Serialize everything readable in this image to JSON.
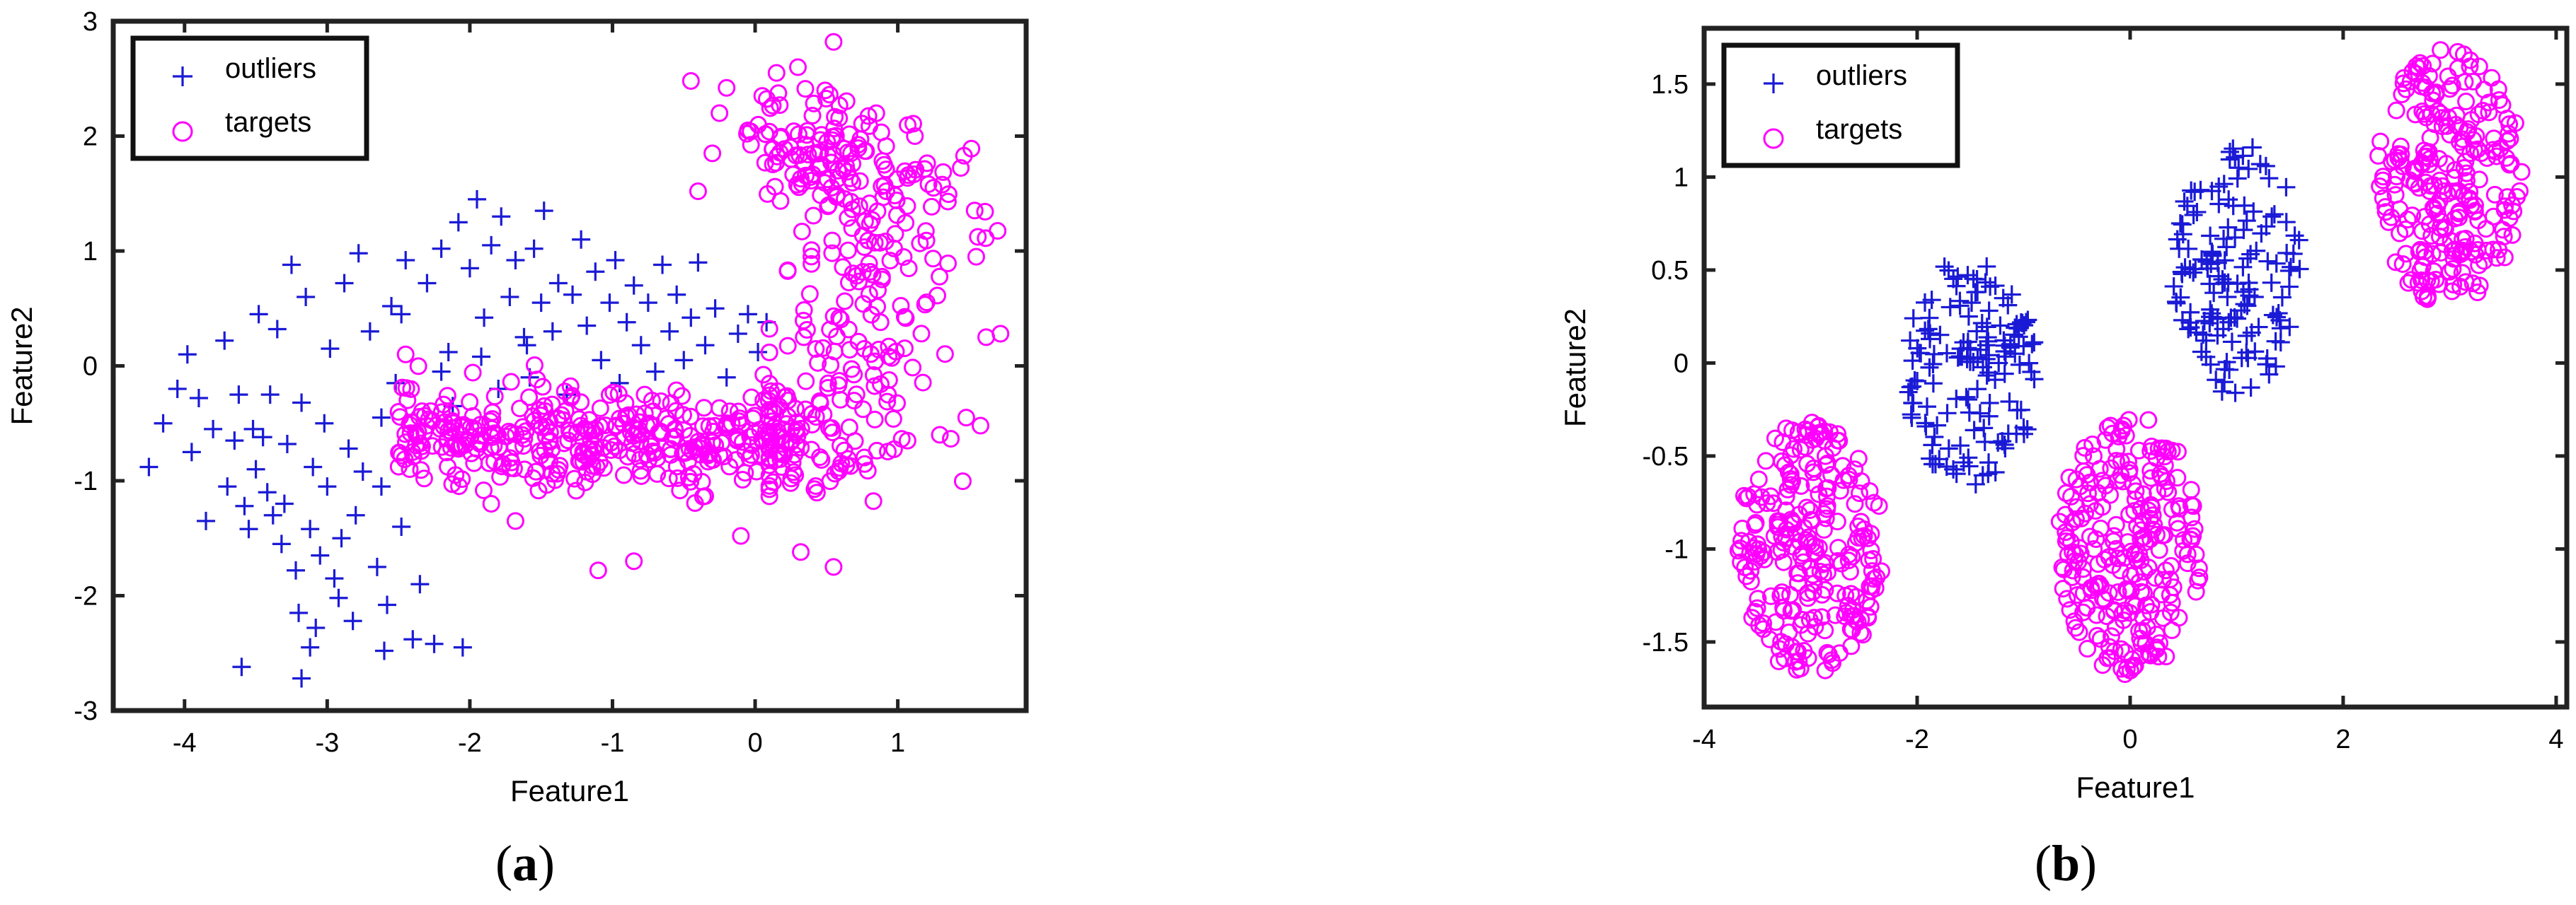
{
  "figure": {
    "panels": [
      {
        "label_open": "(",
        "label_letter": "a",
        "label_close": ")"
      },
      {
        "label_open": "(",
        "label_letter": "b",
        "label_close": ")"
      }
    ]
  },
  "chart_data": [
    {
      "type": "scatter",
      "xlabel": "Feature1",
      "ylabel": "Feature2",
      "xlim": [
        -4.5,
        1.9
      ],
      "ylim": [
        -3.0,
        3.0
      ],
      "xticks": [
        -4,
        -3,
        -2,
        -1,
        0,
        1
      ],
      "yticks": [
        -3,
        -2,
        -1,
        0,
        1,
        2,
        3
      ],
      "legend": {
        "placement": "top-left",
        "entries": [
          "outliers",
          "targets"
        ]
      },
      "grid": false,
      "series": [
        {
          "name": "outliers",
          "marker": "plus",
          "color": "#1a1ad6",
          "points": [
            [
              -4.25,
              -0.88
            ],
            [
              -4.15,
              -0.5
            ],
            [
              -4.05,
              -0.2
            ],
            [
              -3.98,
              0.1
            ],
            [
              -3.95,
              -0.75
            ],
            [
              -3.9,
              -0.28
            ],
            [
              -3.85,
              -1.35
            ],
            [
              -3.8,
              -0.55
            ],
            [
              -3.72,
              0.22
            ],
            [
              -3.7,
              -1.05
            ],
            [
              -3.65,
              -0.65
            ],
            [
              -3.62,
              -0.25
            ],
            [
              -3.6,
              -2.62
            ],
            [
              -3.58,
              -1.22
            ],
            [
              -3.55,
              -1.42
            ],
            [
              -3.52,
              -0.55
            ],
            [
              -3.5,
              -0.9
            ],
            [
              -3.48,
              0.45
            ],
            [
              -3.45,
              -0.62
            ],
            [
              -3.42,
              -1.1
            ],
            [
              -3.4,
              -0.25
            ],
            [
              -3.38,
              -1.3
            ],
            [
              -3.35,
              0.32
            ],
            [
              -3.32,
              -1.55
            ],
            [
              -3.3,
              -1.2
            ],
            [
              -3.28,
              -0.68
            ],
            [
              -3.25,
              0.88
            ],
            [
              -3.22,
              -1.78
            ],
            [
              -3.2,
              -2.15
            ],
            [
              -3.18,
              -0.32
            ],
            [
              -3.15,
              0.6
            ],
            [
              -3.12,
              -1.42
            ],
            [
              -3.1,
              -0.88
            ],
            [
              -3.08,
              -2.28
            ],
            [
              -3.05,
              -1.65
            ],
            [
              -3.02,
              -0.5
            ],
            [
              -3.0,
              -1.05
            ],
            [
              -2.98,
              0.15
            ],
            [
              -2.95,
              -1.85
            ],
            [
              -2.92,
              -2.02
            ],
            [
              -2.9,
              -1.5
            ],
            [
              -2.88,
              0.72
            ],
            [
              -2.85,
              -0.72
            ],
            [
              -2.82,
              -2.22
            ],
            [
              -2.8,
              -1.3
            ],
            [
              -2.78,
              0.98
            ],
            [
              -2.75,
              -0.92
            ],
            [
              -3.18,
              -2.72
            ],
            [
              -3.12,
              -2.45
            ],
            [
              -2.7,
              0.3
            ],
            [
              -2.65,
              -1.75
            ],
            [
              -2.62,
              -0.45
            ],
            [
              -2.6,
              -2.48
            ],
            [
              -2.58,
              -2.08
            ],
            [
              -2.55,
              0.52
            ],
            [
              -2.52,
              -0.15
            ],
            [
              -2.48,
              -1.4
            ],
            [
              -2.45,
              0.92
            ],
            [
              -2.4,
              -2.38
            ],
            [
              -2.35,
              -1.9
            ],
            [
              -2.62,
              -1.05
            ],
            [
              -2.3,
              0.72
            ],
            [
              -2.25,
              -2.42
            ],
            [
              -2.2,
              1.02
            ],
            [
              -2.15,
              0.12
            ],
            [
              -2.12,
              -0.35
            ],
            [
              -2.08,
              1.25
            ],
            [
              -2.05,
              -2.45
            ],
            [
              -2.0,
              0.85
            ],
            [
              -1.95,
              1.45
            ],
            [
              -1.9,
              0.42
            ],
            [
              -1.85,
              1.05
            ],
            [
              -1.8,
              -0.2
            ],
            [
              -1.78,
              1.3
            ],
            [
              -1.72,
              0.6
            ],
            [
              -1.68,
              0.92
            ],
            [
              -1.62,
              0.25
            ],
            [
              -1.58,
              -0.1
            ],
            [
              -1.55,
              1.02
            ],
            [
              -1.5,
              0.55
            ],
            [
              -1.48,
              1.35
            ],
            [
              -1.42,
              0.3
            ],
            [
              -1.38,
              0.72
            ],
            [
              -1.32,
              -0.25
            ],
            [
              -1.28,
              0.62
            ],
            [
              -1.22,
              1.1
            ],
            [
              -1.18,
              0.35
            ],
            [
              -1.12,
              0.82
            ],
            [
              -1.08,
              0.05
            ],
            [
              -1.02,
              0.55
            ],
            [
              -0.98,
              0.92
            ],
            [
              -0.95,
              -0.15
            ],
            [
              -0.9,
              0.38
            ],
            [
              -0.85,
              0.7
            ],
            [
              -0.8,
              0.18
            ],
            [
              -0.75,
              0.55
            ],
            [
              -0.7,
              -0.05
            ],
            [
              -0.65,
              0.88
            ],
            [
              -0.6,
              0.3
            ],
            [
              -0.55,
              0.62
            ],
            [
              -0.5,
              0.05
            ],
            [
              -0.45,
              0.42
            ],
            [
              -0.4,
              0.9
            ],
            [
              -0.35,
              0.18
            ],
            [
              -0.28,
              0.5
            ],
            [
              -0.2,
              -0.1
            ],
            [
              -0.12,
              0.28
            ],
            [
              -0.05,
              0.45
            ],
            [
              0.02,
              0.12
            ],
            [
              0.08,
              0.38
            ],
            [
              -2.48,
              0.45
            ],
            [
              -2.2,
              -0.05
            ],
            [
              -1.92,
              0.08
            ],
            [
              -1.6,
              0.18
            ]
          ]
        },
        {
          "name": "targets",
          "marker": "circle",
          "color": "#ff00ff",
          "generator": {
            "seed": 7,
            "arc": {
              "cx": -0.95,
              "cy": -0.55,
              "ry_scale": 0.24,
              "x_from": -2.5,
              "x_to": 0.3,
              "spread": 0.38,
              "count": 380
            },
            "band": {
              "x_from": 0.1,
              "x_to": 1.6,
              "y_from": -1.2,
              "y_to": 2.2,
              "count": 250
            },
            "top_cluster": {
              "cx": 0.35,
              "cy": 1.9,
              "rx": 0.45,
              "ry": 0.55,
              "count": 70
            }
          },
          "points": [
            [
              -0.45,
              2.48
            ],
            [
              -0.2,
              2.42
            ],
            [
              0.15,
              2.55
            ],
            [
              0.3,
              2.6
            ],
            [
              0.55,
              2.82
            ],
            [
              -0.25,
              2.2
            ],
            [
              0.05,
              2.35
            ],
            [
              -0.4,
              1.52
            ],
            [
              -0.3,
              1.85
            ],
            [
              -0.05,
              2.05
            ],
            [
              1.55,
              0.95
            ],
            [
              1.62,
              0.25
            ],
            [
              1.72,
              0.28
            ],
            [
              1.58,
              -0.52
            ],
            [
              1.48,
              -0.45
            ],
            [
              0.32,
              -1.62
            ],
            [
              0.55,
              -1.75
            ],
            [
              -1.1,
              -1.78
            ],
            [
              -0.85,
              -1.7
            ],
            [
              -0.1,
              -1.48
            ],
            [
              -1.68,
              -1.35
            ],
            [
              -1.85,
              -1.2
            ],
            [
              -2.1,
              -0.95
            ],
            [
              -2.32,
              -0.98
            ],
            [
              -2.5,
              -0.4
            ],
            [
              -2.45,
              0.1
            ],
            [
              0.92,
              1.52
            ],
            [
              1.12,
              2.0
            ],
            [
              1.25,
              1.55
            ]
          ]
        }
      ]
    },
    {
      "type": "scatter",
      "xlabel": "Feature1",
      "ylabel": "Feature2",
      "xlim": [
        -4.0,
        4.1
      ],
      "ylim": [
        -1.85,
        1.8
      ],
      "xticks": [
        -4,
        -2,
        0,
        2,
        4
      ],
      "yticks": [
        -1.5,
        -1,
        -0.5,
        0,
        0.5,
        1,
        1.5
      ],
      "legend": {
        "placement": "top-left",
        "entries": [
          "outliers",
          "targets"
        ]
      },
      "grid": false,
      "series": [
        {
          "name": "outliers",
          "marker": "plus",
          "color": "#1a1ad6",
          "clusters": [
            {
              "cx": -1.5,
              "cy": -0.05,
              "rx": 0.62,
              "ry": 0.62,
              "count": 150
            },
            {
              "cx": 1.0,
              "cy": 0.5,
              "rx": 0.62,
              "ry": 0.68,
              "count": 150
            }
          ]
        },
        {
          "name": "targets",
          "marker": "circle",
          "color": "#ff00ff",
          "clusters": [
            {
              "cx": -3.0,
              "cy": -0.98,
              "rx": 0.68,
              "ry": 0.7,
              "count": 250
            },
            {
              "cx": 0.0,
              "cy": -0.98,
              "rx": 0.68,
              "ry": 0.7,
              "count": 250
            },
            {
              "cx": 3.0,
              "cy": 1.0,
              "rx": 0.68,
              "ry": 0.7,
              "count": 250
            }
          ]
        }
      ]
    }
  ]
}
